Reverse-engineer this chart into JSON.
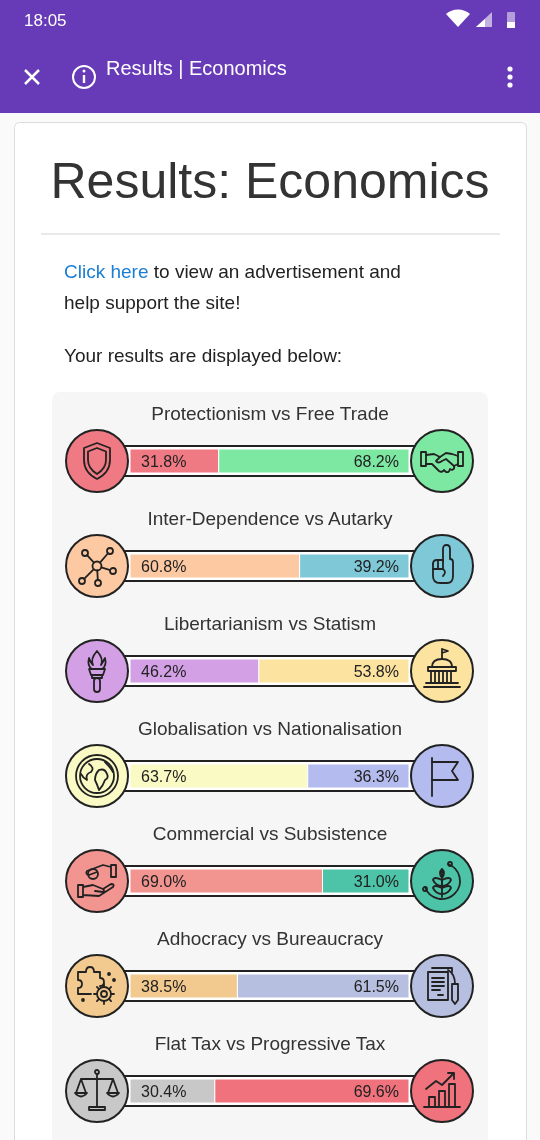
{
  "chart_data": {
    "type": "bar",
    "orientation": "horizontal",
    "stacked": true,
    "title": "Results: Economics",
    "annotations": [
      "18:05",
      "Results | Economics",
      "Click here to view an advertisement and help support the site!",
      "Your results are displayed below:"
    ],
    "categories": [
      "Protectionism vs Free Trade",
      "Inter-Dependence vs Autarky",
      "Libertarianism vs Statism",
      "Globalisation vs Nationalisation",
      "Commercial vs Subsistence",
      "Adhocracy vs Bureaucracy",
      "Flat Tax vs Progressive Tax"
    ],
    "series": [
      {
        "values": [
          31.8,
          60.8,
          46.2,
          63.7,
          69.0,
          38.5,
          30.4
        ],
        "value_labels": [
          "31.8%",
          "60.8%",
          "46.2%",
          "63.7%",
          "69.0%",
          "38.5%",
          "30.4%"
        ],
        "colors": [
          "#f07a84",
          "#fdc9a2",
          "#d3a0e6",
          "#fafac5",
          "#f29490",
          "#f2c98f",
          "#c8c8c8"
        ]
      },
      {
        "values": [
          68.2,
          39.2,
          53.8,
          36.3,
          31.0,
          61.5,
          69.6
        ],
        "value_labels": [
          "68.2%",
          "39.2%",
          "53.8%",
          "36.3%",
          "31.0%",
          "61.5%",
          "69.6%"
        ],
        "colors": [
          "#7de8a2",
          "#7ec8d8",
          "#fde3a0",
          "#b4bcef",
          "#4dc3a8",
          "#b7bfe0",
          "#ef727c"
        ]
      }
    ]
  }
}
